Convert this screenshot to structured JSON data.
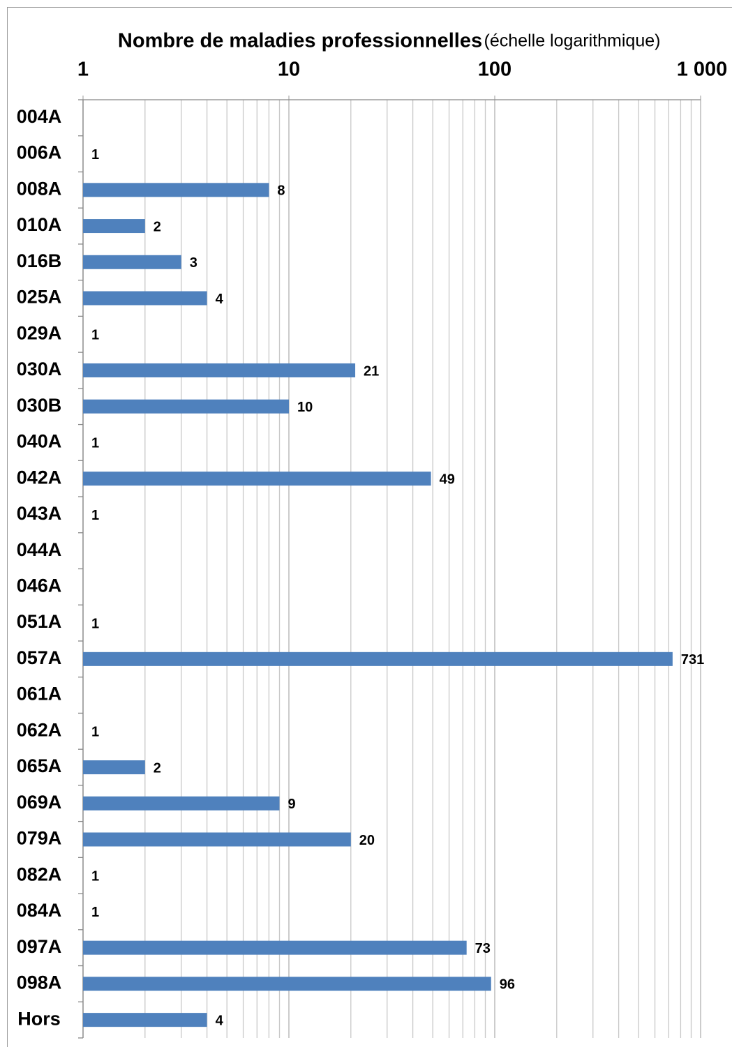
{
  "chart_data": {
    "type": "bar",
    "orientation": "horizontal",
    "title": "Nombre de maladies professionnelles",
    "subtitle": "(échelle logarithmique)",
    "categories": [
      "004A",
      "006A",
      "008A",
      "010A",
      "016B",
      "025A",
      "029A",
      "030A",
      "030B",
      "040A",
      "042A",
      "043A",
      "044A",
      "046A",
      "051A",
      "057A",
      "061A",
      "062A",
      "065A",
      "069A",
      "079A",
      "082A",
      "084A",
      "097A",
      "098A",
      "Hors"
    ],
    "values": [
      null,
      1,
      8,
      2,
      3,
      4,
      1,
      21,
      10,
      1,
      49,
      1,
      null,
      null,
      1,
      731,
      null,
      1,
      2,
      9,
      20,
      1,
      1,
      73,
      96,
      4
    ],
    "color": "#4f81bd",
    "xscale": "log",
    "xlim": [
      1,
      1000
    ],
    "xticks": [
      1,
      10,
      100,
      {
        "value": 1000,
        "label": "1 000"
      }
    ],
    "minor_xticks": [
      2,
      3,
      4,
      5,
      6,
      7,
      8,
      9,
      20,
      30,
      40,
      50,
      60,
      70,
      80,
      90,
      200,
      300,
      400,
      500,
      600,
      700,
      800,
      900
    ],
    "grid": true
  }
}
